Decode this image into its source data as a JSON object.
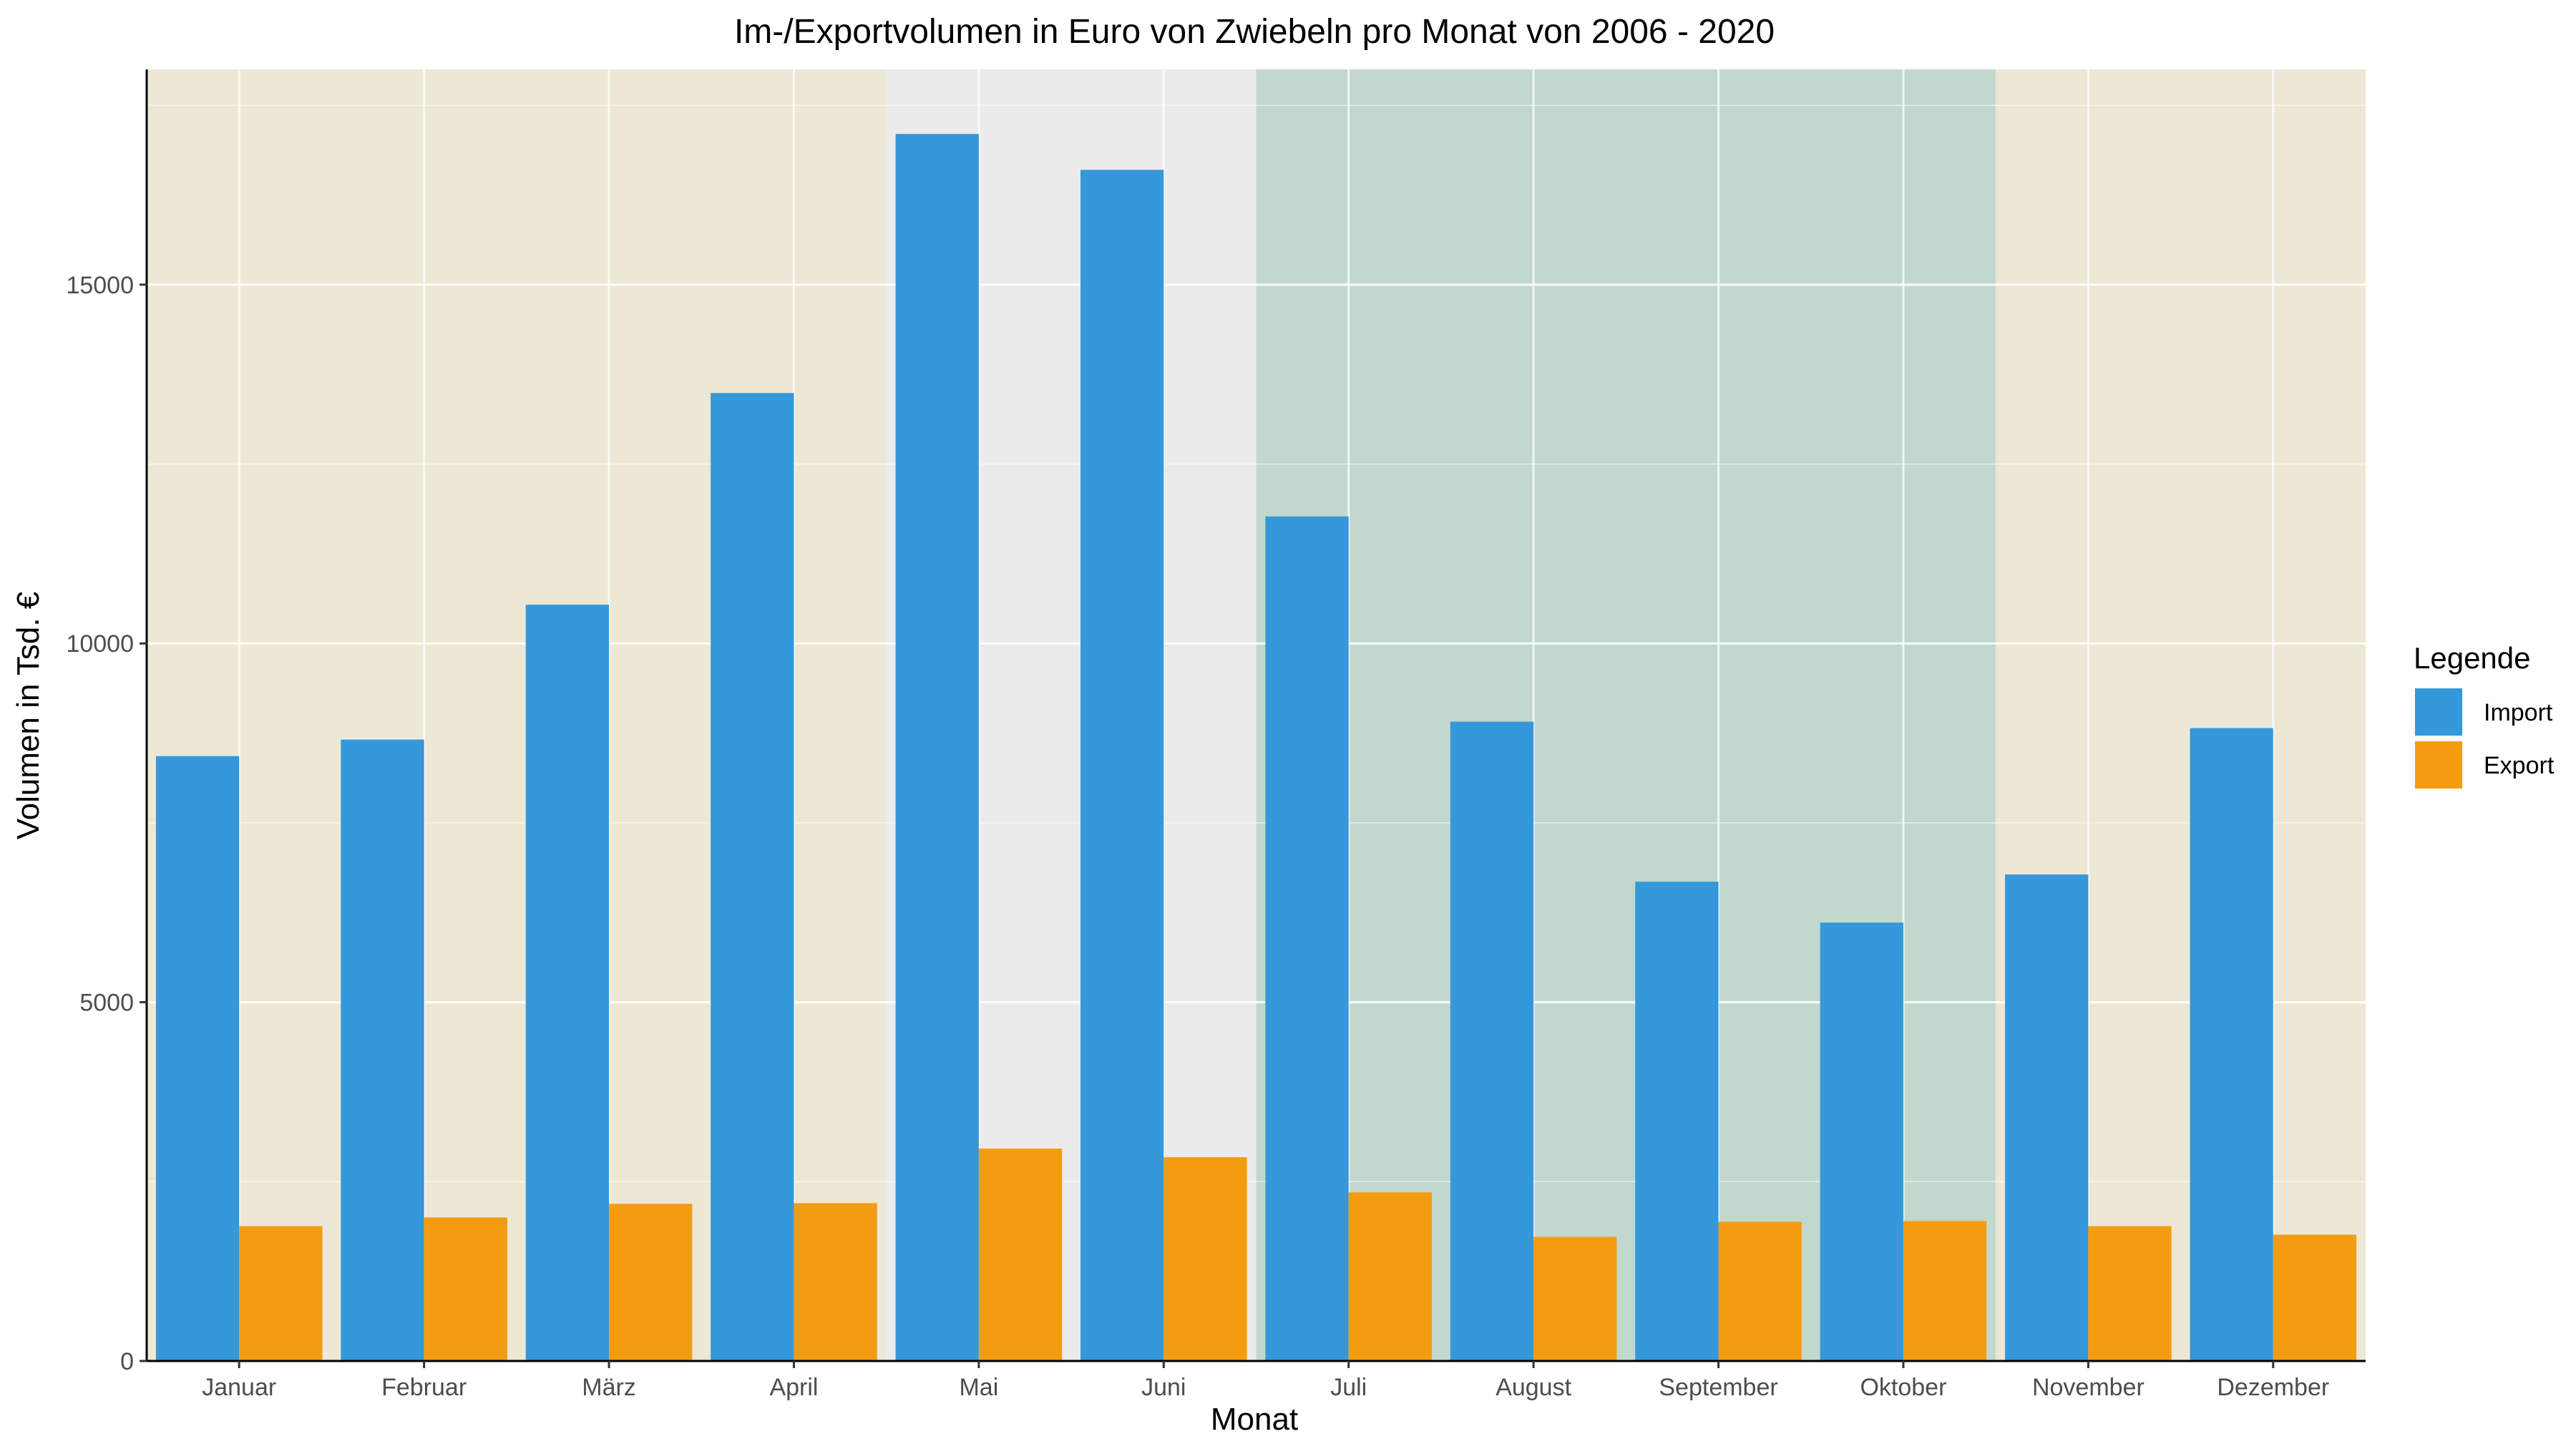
{
  "chart_data": {
    "type": "bar",
    "title": "Im-/Exportvolumen in Euro von Zwiebeln pro Monat von 2006 - 2020",
    "xlabel": "Monat",
    "ylabel": "Volumen in Tsd. €",
    "categories": [
      "Januar",
      "Februar",
      "März",
      "April",
      "Mai",
      "Juni",
      "Juli",
      "August",
      "September",
      "Oktober",
      "November",
      "Dezember"
    ],
    "series": [
      {
        "name": "Import",
        "color": "#3498db",
        "values": [
          8430,
          8660,
          10540,
          13490,
          17100,
          16600,
          11770,
          8910,
          6680,
          6110,
          6780,
          8820
        ]
      },
      {
        "name": "Export",
        "color": "#f39c12",
        "values": [
          1880,
          2000,
          2190,
          2200,
          2960,
          2840,
          2350,
          1730,
          1940,
          1950,
          1880,
          1760
        ]
      }
    ],
    "ylim": [
      0,
      18000
    ],
    "yticks": [
      0,
      5000,
      10000,
      15000
    ],
    "grid": true,
    "background_bands": [
      {
        "from": "Januar",
        "to": "April",
        "color": "#ede8d5"
      },
      {
        "from": "Mai",
        "to": "Juni",
        "color": "#ebebeb"
      },
      {
        "from": "Juli",
        "to": "Oktober",
        "color": "#c3d8cd"
      },
      {
        "from": "November",
        "to": "Dezember",
        "color": "#ede8d5"
      }
    ],
    "legend": {
      "title": "Legende",
      "placement": "right"
    }
  }
}
